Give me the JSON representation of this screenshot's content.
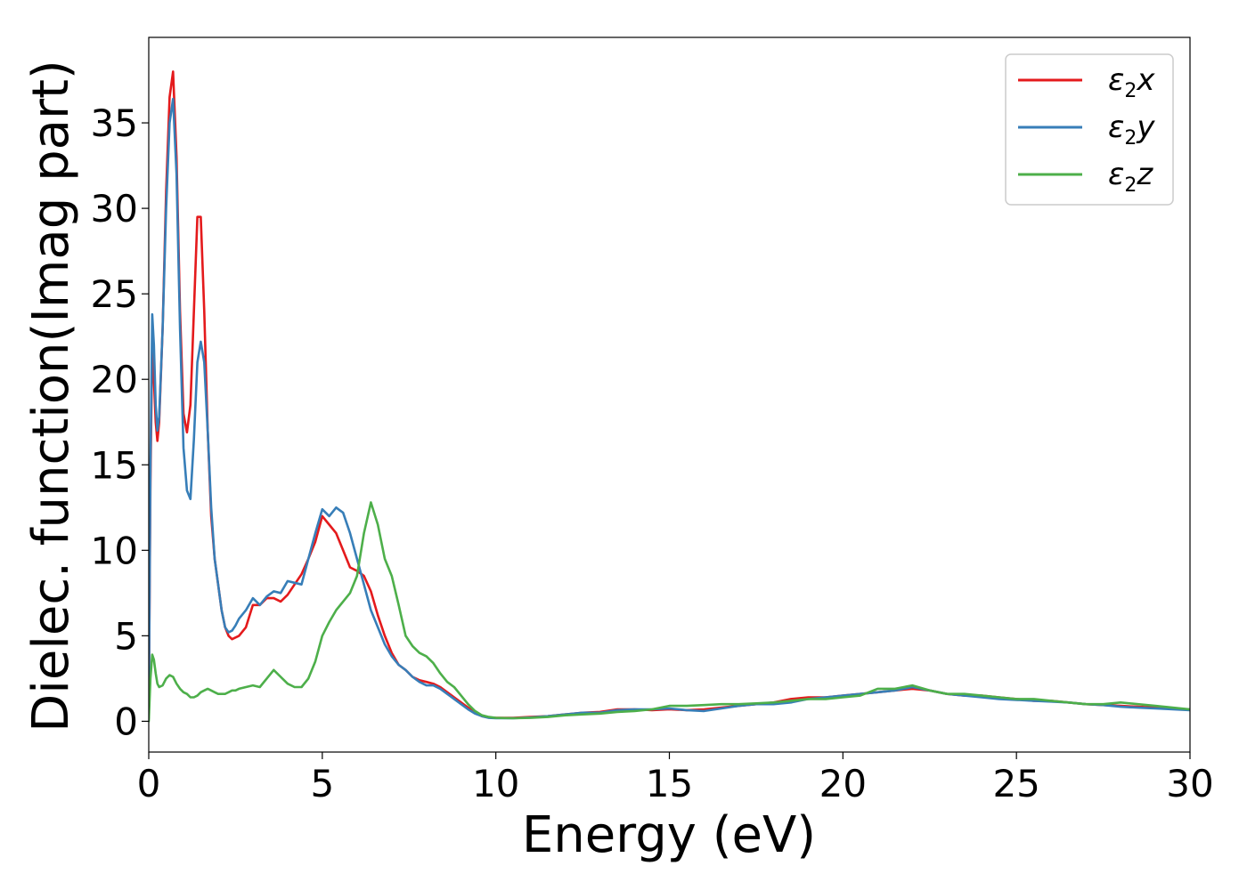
{
  "chart_data": {
    "type": "line",
    "title": "",
    "xlabel": "Energy (eV)",
    "ylabel": "Dielec. function(Imag part)",
    "xlim": [
      0,
      30
    ],
    "ylim": [
      -1.8,
      40
    ],
    "xticks": [
      "0",
      "5",
      "10",
      "15",
      "20",
      "25",
      "30"
    ],
    "xtick_values": [
      0,
      5,
      10,
      15,
      20,
      25,
      30
    ],
    "yticks": [
      "0",
      "5",
      "10",
      "15",
      "20",
      "25",
      "30",
      "35"
    ],
    "ytick_values": [
      0,
      5,
      10,
      15,
      20,
      25,
      30,
      35
    ],
    "grid": false,
    "legend_position": "top-right",
    "series": [
      {
        "name": "ε2x",
        "legend_main": "ε",
        "legend_sub": "2",
        "legend_tail": "x",
        "color": "#e41a1c",
        "x": [
          0,
          0.05,
          0.1,
          0.15,
          0.2,
          0.25,
          0.3,
          0.4,
          0.5,
          0.6,
          0.7,
          0.8,
          0.9,
          1.0,
          1.1,
          1.2,
          1.3,
          1.4,
          1.5,
          1.6,
          1.7,
          1.8,
          1.9,
          2.0,
          2.1,
          2.2,
          2.3,
          2.4,
          2.5,
          2.6,
          2.8,
          3.0,
          3.2,
          3.4,
          3.6,
          3.8,
          4.0,
          4.2,
          4.4,
          4.6,
          4.8,
          5.0,
          5.2,
          5.4,
          5.6,
          5.8,
          6.0,
          6.2,
          6.4,
          6.6,
          6.8,
          7.0,
          7.2,
          7.4,
          7.6,
          7.8,
          8.0,
          8.2,
          8.4,
          8.6,
          8.8,
          9.0,
          9.2,
          9.4,
          9.6,
          9.8,
          10.0,
          10.5,
          11.0,
          11.5,
          12.0,
          12.5,
          13.0,
          13.5,
          14.0,
          14.5,
          15.0,
          15.5,
          16.0,
          16.5,
          17.0,
          17.5,
          18.0,
          18.5,
          19.0,
          19.5,
          20.0,
          20.5,
          21.0,
          21.5,
          22.0,
          22.5,
          23.0,
          23.5,
          24.0,
          24.5,
          25.0,
          25.5,
          26.0,
          26.5,
          27.0,
          27.5,
          28.0,
          28.5,
          29.0,
          29.5,
          30.0
        ],
        "values": [
          0.2,
          14.0,
          22.0,
          20.0,
          17.5,
          16.4,
          17.5,
          23.0,
          31.0,
          36.5,
          38.0,
          33.0,
          24.0,
          18.0,
          16.9,
          18.5,
          24.0,
          29.5,
          29.5,
          24.0,
          17.0,
          12.0,
          9.5,
          8.0,
          6.5,
          5.5,
          5.0,
          4.8,
          4.9,
          5.0,
          5.5,
          6.8,
          6.8,
          7.2,
          7.2,
          7.0,
          7.4,
          8.0,
          8.6,
          9.5,
          10.5,
          12.0,
          11.5,
          11.0,
          10.0,
          9.0,
          8.8,
          8.5,
          7.6,
          6.2,
          5.0,
          4.0,
          3.3,
          3.0,
          2.6,
          2.4,
          2.3,
          2.2,
          2.0,
          1.7,
          1.4,
          1.1,
          0.8,
          0.5,
          0.3,
          0.22,
          0.2,
          0.2,
          0.25,
          0.3,
          0.4,
          0.5,
          0.55,
          0.7,
          0.7,
          0.65,
          0.7,
          0.65,
          0.7,
          0.8,
          0.9,
          1.0,
          1.1,
          1.3,
          1.4,
          1.4,
          1.5,
          1.6,
          1.7,
          1.8,
          1.9,
          1.8,
          1.6,
          1.5,
          1.5,
          1.4,
          1.3,
          1.2,
          1.2,
          1.1,
          1.0,
          0.95,
          0.9,
          0.85,
          0.8,
          0.75,
          0.7
        ]
      },
      {
        "name": "ε2y",
        "legend_main": "ε",
        "legend_sub": "2",
        "legend_tail": "y",
        "color": "#377eb8",
        "x": [
          0,
          0.05,
          0.1,
          0.15,
          0.2,
          0.25,
          0.3,
          0.4,
          0.5,
          0.6,
          0.7,
          0.8,
          0.9,
          1.0,
          1.1,
          1.2,
          1.3,
          1.4,
          1.5,
          1.6,
          1.7,
          1.8,
          1.9,
          2.0,
          2.1,
          2.2,
          2.3,
          2.4,
          2.5,
          2.6,
          2.8,
          3.0,
          3.2,
          3.4,
          3.6,
          3.8,
          4.0,
          4.2,
          4.4,
          4.6,
          4.8,
          5.0,
          5.2,
          5.4,
          5.6,
          5.8,
          6.0,
          6.2,
          6.4,
          6.6,
          6.8,
          7.0,
          7.2,
          7.4,
          7.6,
          7.8,
          8.0,
          8.2,
          8.4,
          8.6,
          8.8,
          9.0,
          9.2,
          9.4,
          9.6,
          9.8,
          10.0,
          10.5,
          11.0,
          11.5,
          12.0,
          12.5,
          13.0,
          13.5,
          14.0,
          14.5,
          15.0,
          15.5,
          16.0,
          16.5,
          17.0,
          17.5,
          18.0,
          18.5,
          19.0,
          19.5,
          20.0,
          20.5,
          21.0,
          21.5,
          22.0,
          22.5,
          23.0,
          23.5,
          24.0,
          24.5,
          25.0,
          25.5,
          26.0,
          26.5,
          27.0,
          27.5,
          28.0,
          28.5,
          29.0,
          29.5,
          30.0
        ],
        "values": [
          0.2,
          15.0,
          23.8,
          22.0,
          18.5,
          17.0,
          17.8,
          23.0,
          30.0,
          35.0,
          36.4,
          32.0,
          23.0,
          16.0,
          13.5,
          13.0,
          16.5,
          21.0,
          22.2,
          21.0,
          17.0,
          12.5,
          9.5,
          8.0,
          6.5,
          5.5,
          5.2,
          5.3,
          5.6,
          6.0,
          6.5,
          7.2,
          6.8,
          7.3,
          7.6,
          7.5,
          8.2,
          8.1,
          8.0,
          9.5,
          11.0,
          12.4,
          12.0,
          12.5,
          12.2,
          11.0,
          9.5,
          8.0,
          6.5,
          5.5,
          4.5,
          3.8,
          3.3,
          3.0,
          2.6,
          2.3,
          2.1,
          2.1,
          1.9,
          1.6,
          1.3,
          1.0,
          0.7,
          0.45,
          0.3,
          0.2,
          0.18,
          0.18,
          0.22,
          0.3,
          0.4,
          0.5,
          0.5,
          0.65,
          0.7,
          0.7,
          0.75,
          0.65,
          0.6,
          0.75,
          0.9,
          1.0,
          1.0,
          1.1,
          1.3,
          1.4,
          1.5,
          1.6,
          1.7,
          1.8,
          2.0,
          1.8,
          1.6,
          1.5,
          1.4,
          1.3,
          1.25,
          1.2,
          1.15,
          1.1,
          1.0,
          0.95,
          0.85,
          0.8,
          0.75,
          0.7,
          0.65
        ]
      },
      {
        "name": "ε2z",
        "legend_main": "ε",
        "legend_sub": "2",
        "legend_tail": "z",
        "color": "#4daf4a",
        "x": [
          0,
          0.05,
          0.1,
          0.15,
          0.2,
          0.25,
          0.3,
          0.4,
          0.5,
          0.6,
          0.7,
          0.8,
          0.9,
          1.0,
          1.1,
          1.2,
          1.3,
          1.4,
          1.5,
          1.6,
          1.7,
          1.8,
          1.9,
          2.0,
          2.1,
          2.2,
          2.3,
          2.4,
          2.5,
          2.6,
          2.8,
          3.0,
          3.2,
          3.4,
          3.6,
          3.8,
          4.0,
          4.2,
          4.4,
          4.6,
          4.8,
          5.0,
          5.2,
          5.4,
          5.6,
          5.8,
          6.0,
          6.2,
          6.4,
          6.6,
          6.8,
          7.0,
          7.2,
          7.4,
          7.6,
          7.8,
          8.0,
          8.2,
          8.4,
          8.6,
          8.8,
          9.0,
          9.2,
          9.4,
          9.6,
          9.8,
          10.0,
          10.5,
          11.0,
          11.5,
          12.0,
          12.5,
          13.0,
          13.5,
          14.0,
          14.5,
          15.0,
          15.5,
          16.0,
          16.5,
          17.0,
          17.5,
          18.0,
          18.5,
          19.0,
          19.5,
          20.0,
          20.5,
          21.0,
          21.5,
          22.0,
          22.5,
          23.0,
          23.5,
          24.0,
          24.5,
          25.0,
          25.5,
          26.0,
          26.5,
          27.0,
          27.5,
          28.0,
          28.5,
          29.0,
          29.5,
          30.0
        ],
        "values": [
          0.0,
          2.5,
          3.9,
          3.6,
          2.8,
          2.2,
          2.0,
          2.1,
          2.5,
          2.7,
          2.6,
          2.2,
          1.9,
          1.7,
          1.6,
          1.4,
          1.4,
          1.5,
          1.7,
          1.8,
          1.9,
          1.8,
          1.7,
          1.6,
          1.6,
          1.6,
          1.7,
          1.8,
          1.8,
          1.9,
          2.0,
          2.1,
          2.0,
          2.5,
          3.0,
          2.6,
          2.2,
          2.0,
          2.0,
          2.5,
          3.5,
          5.0,
          5.8,
          6.5,
          7.0,
          7.5,
          8.5,
          11.0,
          12.8,
          11.5,
          9.5,
          8.5,
          6.8,
          5.0,
          4.4,
          4.0,
          3.8,
          3.4,
          2.8,
          2.3,
          2.0,
          1.5,
          1.0,
          0.6,
          0.35,
          0.25,
          0.2,
          0.18,
          0.2,
          0.25,
          0.35,
          0.4,
          0.45,
          0.55,
          0.6,
          0.7,
          0.9,
          0.9,
          0.95,
          1.0,
          1.0,
          1.05,
          1.1,
          1.2,
          1.3,
          1.3,
          1.4,
          1.5,
          1.9,
          1.9,
          2.1,
          1.8,
          1.6,
          1.6,
          1.5,
          1.4,
          1.3,
          1.3,
          1.2,
          1.1,
          1.0,
          1.0,
          1.1,
          1.0,
          0.9,
          0.8,
          0.7
        ]
      }
    ]
  }
}
